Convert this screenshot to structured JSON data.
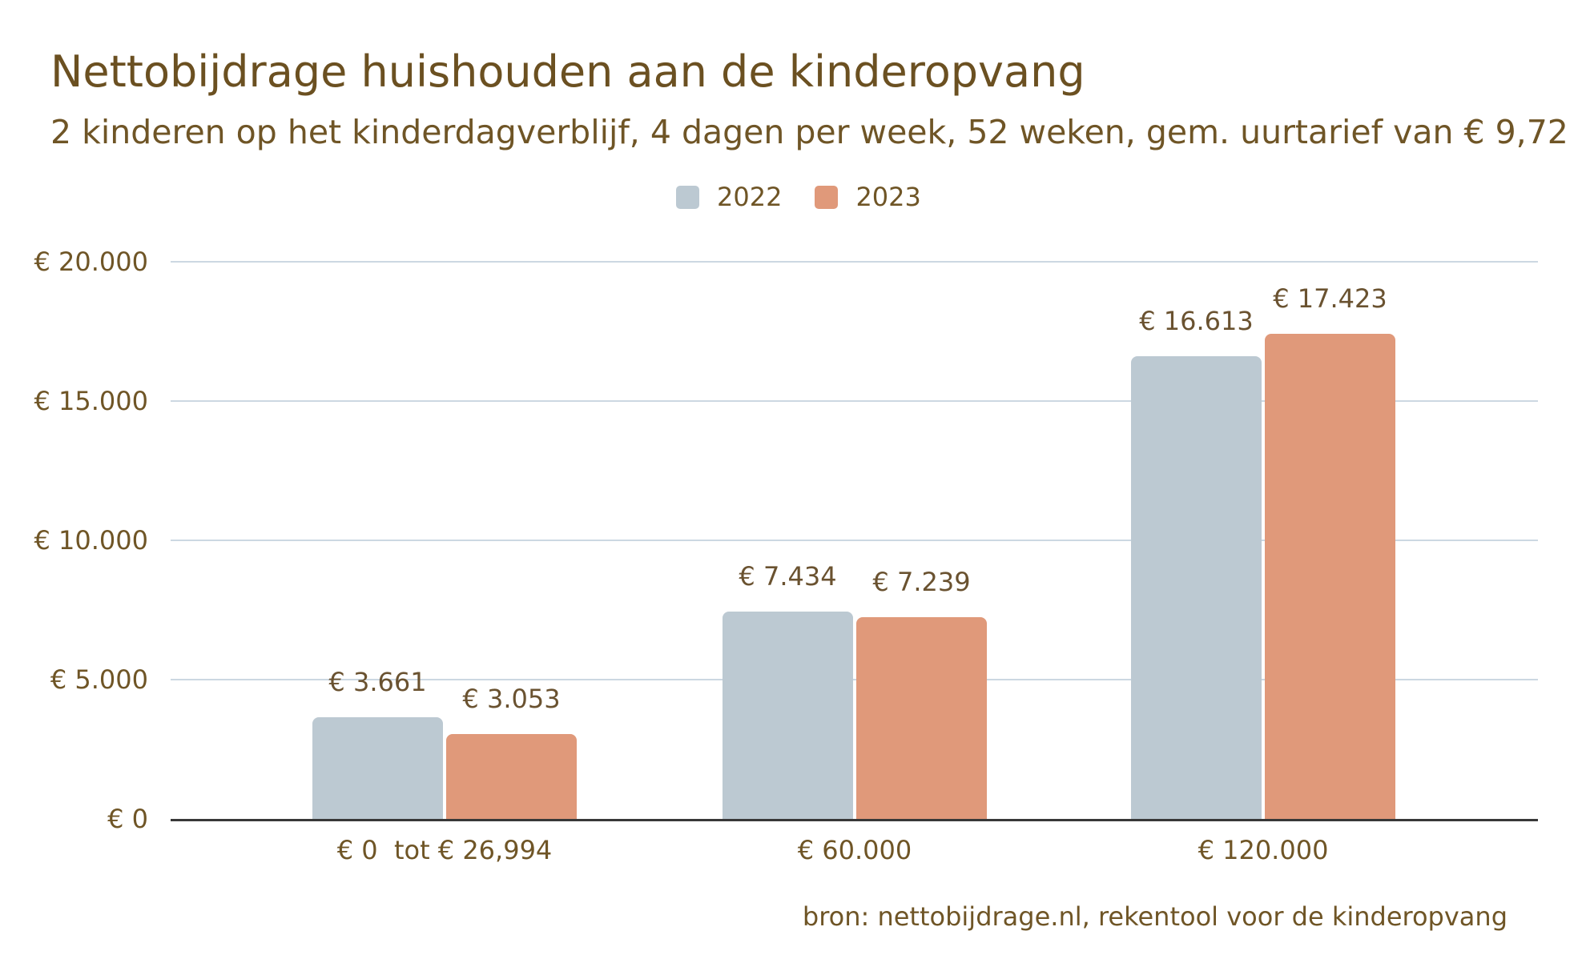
{
  "chart_data": {
    "type": "bar",
    "title": "Nettobijdrage huishouden aan de kinderopvang",
    "subtitle": "2 kinderen op het kinderdagverblijf, 4 dagen per week, 52 weken, gem. uurtarief van € 9,72",
    "source": "bron: nettobijdrage.nl, rekentool voor de kinderopvang",
    "categories": [
      "€ 0  tot € 26,994",
      "€ 60.000",
      "€ 120.000"
    ],
    "series": [
      {
        "name": "2022",
        "color": "#bcc9d2",
        "values": [
          3661,
          7434,
          16613
        ],
        "labels": [
          "€ 3.661",
          "€ 7.434",
          "€ 16.613"
        ]
      },
      {
        "name": "2023",
        "color": "#e0997a",
        "values": [
          3053,
          7239,
          17423
        ],
        "labels": [
          "€ 3.053",
          "€ 7.239",
          "€ 17.423"
        ]
      }
    ],
    "y_axis": {
      "min": 0,
      "max": 20000,
      "tick_step": 5000,
      "tick_labels": [
        "€ 0",
        "€ 5.000",
        "€ 10.000",
        "€ 15.000",
        "€ 20.000"
      ]
    },
    "legend_position": "top-center",
    "grid": true,
    "colors": {
      "text": "#6f5526",
      "title_text": "#6b5021",
      "gridline": "#ccd8e2",
      "axis_line": "#383838"
    }
  }
}
